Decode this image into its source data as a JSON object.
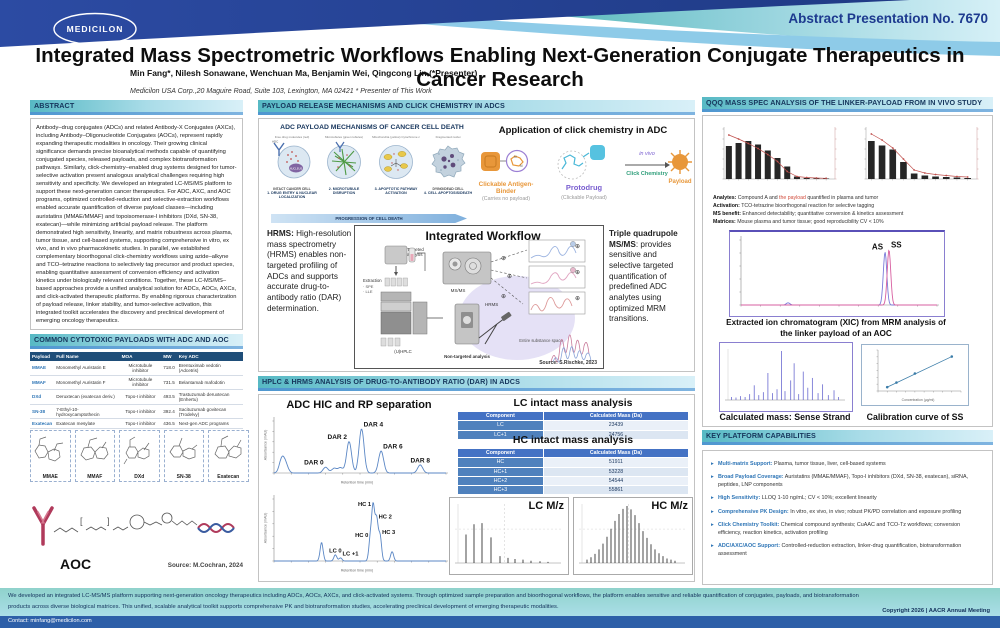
{
  "header": {
    "logo_text": "MEDICILON",
    "abstract_no": "Abstract Presentation No. 7670",
    "title": "Integrated Mass Spectrometric Workflows Enabling Next-Generation Conjugate Therapeutics in Cancer Research",
    "authors": "Min Fang*, Nilesh Sonawane, Wenchuan Ma, Benjamin Wei, Qingcong Lin (*Presenter)",
    "affiliation": "Medicilon USA Corp.,20 Maguire Road, Suite 103, Lexington, MA 02421 * Presenter of This Work"
  },
  "abstract": {
    "heading": "ABSTRACT",
    "body": "Antibody–drug conjugates (ADCs) and related Antibody-X Conjugates (AXCs), including Antibody–Oligonucleotide Conjugates (AOCs), represent rapidly expanding therapeutic modalities in oncology. Their growing clinical significance demands precise bioanalytical methods capable of quantifying conjugated species, released payloads, and complex biotransformation pathways. Similarly, click-chemistry–enabled drug systems designed for tumor-selective activation present analogous analytical challenges requiring high sensitivity and specificity. We developed an integrated LC-MS/MS platform to support these next-generation cancer therapeutics. For ADC, AXC, and AOC programs, optimized controlled-reduction and selective-extraction workflows enabled accurate quantification of diverse payload classes—including auristatins (MMAE/MMAF) and topoisomerase-I inhibitors (DXd, SN-38, exatecan)—while minimizing artificial payload release. The platform demonstrated high sensitivity, linearity, and matrix robustness across plasma, tumor tissue, and cell-based systems, supporting comprehensive in vitro, ex vivo, and in vivo pharmacokinetic studies. In parallel, we established complementary bioorthogonal click-chemistry workflows using azide–alkyne and TCO–tetrazine reactions to selectively tag precursor and product species, enabling quantitative assessment of conversion efficiency and activation kinetics under biologically relevant conditions. Together, these LC-MS/MS–based approaches provide a unified analytical solution for ADCs, AOCs, AXCs, and click-activated therapeutic platforms. By enabling rigorous characterization of payload release, linker stability, and tumor-selective activation, this integrated toolkit accelerates the discovery and preclinical development of emerging oncology therapeutics."
  },
  "payload_table": {
    "heading": "COMMON CYTOTOXIC PAYLOADS WITH ADC AND AOC",
    "columns": [
      "Payload",
      "Full Name",
      "MOA",
      "MW",
      "Key ADC"
    ],
    "rows": [
      [
        "MMAE",
        "Monomethyl Auristatin E",
        "Microtubule inhibitor",
        "718.0",
        "Brentuximab vedotin (Adcetris)"
      ],
      [
        "MMAF",
        "Monomethyl Auristatin F",
        "Microtubule inhibitor",
        "731.5",
        "Belantamab mafodotin"
      ],
      [
        "DXd",
        "Deruxtecan (exatecan deriv.)",
        "Topo-I inhibitor",
        "493.5",
        "Trastuzumab deruxtecan (Enhertu)"
      ],
      [
        "SN-38",
        "7-Ethyl-10-hydroxycamptothecin",
        "Topo-I inhibitor",
        "392.4",
        "Sacituzumab govitecan (Trodelvy)"
      ],
      [
        "Exatecan",
        "Exatecan mesylate",
        "Topo-I inhibitor",
        "436.5",
        "Next-gen ADC programs"
      ]
    ],
    "structures": [
      "MMAE",
      "MMAF",
      "DXd",
      "SN-38",
      "Exatecan"
    ],
    "aoc_label": "AOC",
    "aoc_source": "Source: M.Cochran, 2024"
  },
  "payload_release": {
    "heading": "PAYLOAD RELEASE MECHANISMS AND CLICK CHEMISTRY IN ADCS",
    "mech_title": "ADC PAYLOAD MECHANISMS OF CANCER CELL DEATH",
    "steps": [
      {
        "ann": "Free drug molecules (red)",
        "top": "INTACT CANCER CELL",
        "label": "1. DRUG ENTRY & NUCLEAR LOCALIZATION"
      },
      {
        "ann": "Microtubules (green tubules)",
        "top": "",
        "label": "2. MICROTUBULE DISRUPTION"
      },
      {
        "ann": "Mitochondria (yellow)  Cytochrome c",
        "top": "",
        "label": "3. APOPTOTIC PATHWAY ACTIVATION"
      },
      {
        "ann": "Fragmented nuclei",
        "top": "DYING/DEAD CELL",
        "label": "4. CELL APOPTOSIS/DEATH"
      }
    ],
    "progress_arrow": "PROGRESSION OF CELL DEATH",
    "click_title": "Application of click chemistry in ADC",
    "antigen_binder_label": "Clickable Antigen-Binder",
    "antigen_binder_sub": "(Carries no payload)",
    "protodrug_label": "Protodrug",
    "protodrug_sub": "(Clickable Payload)",
    "invivo_label": "in vivo",
    "click_chem_label": "Click Chemistry",
    "payload_label": "Payload",
    "hrms_note": {
      "lead": "HRMS:",
      "text": " High-resolution mass spectrometry (HRMS) enables non-targeted profiling of ADCs and supports accurate drug-to-antibody ratio (DAR) determination."
    },
    "qqq_note": {
      "lead": "Triple quadrupole MS/MS",
      "text": ": provides sensitive and selective targeted quantification of predefined ADC analytes using optimized MRM transitions."
    },
    "workflow": {
      "title": "Integrated Workflow",
      "targeted": "Targeted analysis",
      "msms": "MS/MS",
      "hrms": "HRMS",
      "uhplc": "(U)HPLC",
      "nontargeted": "Non-targeted analysis",
      "extraction": "Extraction",
      "extraction_items": "· SPE  · LLE",
      "space": "Entire substance space",
      "source": "Source: S.Rischke, 2023"
    }
  },
  "dar_section": {
    "heading": "HPLC & HRMS ANALYSIS OF DRUG-TO-ANTIBODY RATIO (DAR) IN ADCS",
    "hic_title": "ADC HIC and RP separation",
    "lc_table_title": "LC intact mass analysis",
    "hc_table_title": "HC intact mass analysis",
    "columns": [
      "Component",
      "Calculated Mass (Da)"
    ],
    "lc_rows": [
      [
        "LC",
        "23439"
      ],
      [
        "LC+1",
        "24756"
      ]
    ],
    "hc_rows": [
      [
        "HC",
        "51911"
      ],
      [
        "HC+1",
        "53228"
      ],
      [
        "HC+2",
        "54544"
      ],
      [
        "HC+3",
        "55861"
      ]
    ],
    "lc_mz_label": "LC M/z",
    "hc_mz_label": "HC M/z"
  },
  "qqq_section": {
    "heading": "QQQ MASS SPEC ANALYSIS OF THE LINKER-PAYLOAD FROM IN VIVO STUDY",
    "analysis_lines": [
      {
        "label": "Analytes:",
        "parts": [
          {
            "t": "Compound A and "
          },
          {
            "t": "the payload",
            "red": true
          },
          {
            "t": " quantified in plasma and tumor"
          }
        ]
      },
      {
        "label": "Activation:",
        "text": "TCO-tetrazine bioorthogonal reaction for selective tagging"
      },
      {
        "label": "MS benefit:",
        "text": "Enhanced detectability; quantitative conversion & kinetics assessment"
      },
      {
        "label": "Matrices:",
        "text": "Mouse plasma and tumor tissue; good reproducibility CV < 10%"
      }
    ],
    "xic_caption": "Extracted ion chromatogram (XIC) from MRM analysis of the linker payload of an AOC",
    "ss_caption": "Calculated mass: Sense Strand",
    "cal_caption": "Calibration curve of SS"
  },
  "capabilities": {
    "heading": "KEY PLATFORM CAPABILITIES",
    "bullets": [
      {
        "label": "Multi-matrix Support:",
        "text": " Plasma, tumor tissue, liver, cell-based systems"
      },
      {
        "label": "Broad Payload Coverage:",
        "text": " Auristatins (MMAE/MMAF), Topo-I inhibitors (DXd, SN-38, exatecan), siRNA, peptides, LNP components"
      },
      {
        "label": "High Sensitivity:",
        "text": " LLOQ 1-10 ng/mL; CV < 10%; excellent linearity"
      },
      {
        "label": "Comprehensive PK Design:",
        "text": " In vitro, ex vivo, in vivo; robust PK/PD correlation and exposure profiling"
      },
      {
        "label": "Click Chemistry Toolkit:",
        "text": " Chemical compound synthesis; CuAAC and TCO-Tz workflows; conversion efficiency, reaction kinetics, activation profiling"
      },
      {
        "label": "ADC/AXC/AOC Support:",
        "text": " Controlled-reduction extraction, linker-drug quantification, biotransformation assessment"
      }
    ]
  },
  "footer": {
    "summary": "We developed an integrated LC-MS/MS platform supporting next-generation oncology therapeutics including ADCs, AOCs, AXCs, and click-activated systems. Through optimized sample preparation and bioorthogonal workflows, the platform enables sensitive and reliable quantification of conjugates, payloads, and biotransformation products across diverse biological matrices. This unified, scalable analytical toolkit supports comprehensive PK and biotransformation studies, accelerating preclinical development of emerging therapeutic modalities.",
    "copyright": "Copyright 2026  |  AACR Annual Meeting",
    "contact": "Contact: minfang@medicilon.com"
  },
  "colors": {
    "brand_blue": "#2b4aa0",
    "teal": "#2fa7a2",
    "navy_text": "#17365d",
    "table_header": "#1f4e79",
    "link_blue": "#2e75b6",
    "chromatogram_blue": "#5b87c5",
    "bar_black": "#262626",
    "line_red": "#c0504d",
    "footer_teal": "#8fd2cb",
    "contact_bar": "#2d5fa8"
  },
  "chart_data": [
    {
      "id": "hic",
      "type": "chromatogram",
      "title": "ADC HIC and RP separation",
      "xlabel": "Retention time (min)",
      "ylabel": "Absorbance (mAU)",
      "xlim": [
        2,
        24
      ],
      "peak_width": 0.32,
      "label_size": 6.5,
      "series": [
        {
          "color": "#5b87c5",
          "peaks": [
            {
              "x": 3.0,
              "h": 12
            },
            {
              "x": 3.5,
              "h": 7
            },
            {
              "x": 8.6,
              "h": 5,
              "label": "DAR 0",
              "align": "end"
            },
            {
              "x": 9.7,
              "h": 4
            },
            {
              "x": 10.5,
              "h": 4.5
            },
            {
              "x": 11.6,
              "h": 27,
              "label": "DAR 2",
              "align": "end"
            },
            {
              "x": 13.2,
              "h": 38,
              "label": "DAR 4",
              "align": "start"
            },
            {
              "x": 15.7,
              "h": 19,
              "label": "DAR 6",
              "align": "start"
            },
            {
              "x": 20.7,
              "h": 7,
              "label": "DAR 8",
              "align": "middle"
            }
          ]
        }
      ]
    },
    {
      "id": "rp",
      "type": "chromatogram",
      "xlabel": "Retention time (min)",
      "ylabel": "Absorbance (mAU)",
      "xlim": [
        0,
        30
      ],
      "peak_width": 0.26,
      "label_size": 5.8,
      "series": [
        {
          "color": "#5b87c5",
          "peaks": [
            {
              "x": 8.3,
              "h": 6
            },
            {
              "x": 10.7,
              "h": 2,
              "label": "LC 0",
              "align": "middle"
            },
            {
              "x": 11.6,
              "h": 1,
              "label": "LC +1",
              "align": "start"
            },
            {
              "x": 16.8,
              "h": 7,
              "label": "HC 0",
              "align": "end"
            },
            {
              "x": 17.3,
              "h": 17,
              "label": "HC 1",
              "align": "end"
            },
            {
              "x": 17.9,
              "h": 13,
              "label": "HC 2",
              "align": "start"
            },
            {
              "x": 18.5,
              "h": 8,
              "label": "HC 3",
              "align": "start"
            },
            {
              "x": 20.6,
              "h": 3
            }
          ]
        }
      ]
    },
    {
      "id": "lcmz",
      "type": "sticks",
      "grid": true,
      "color": "#1a1a1a",
      "sticks": [
        [
          0.08,
          50
        ],
        [
          0.16,
          68
        ],
        [
          0.24,
          70
        ],
        [
          0.33,
          45
        ],
        [
          0.42,
          12
        ],
        [
          0.5,
          9
        ],
        [
          0.57,
          7
        ],
        [
          0.65,
          6
        ],
        [
          0.73,
          4
        ],
        [
          0.82,
          3
        ],
        [
          0.9,
          2
        ]
      ]
    },
    {
      "id": "hcmz",
      "type": "sticks",
      "grid": true,
      "color": "#1a1a1a",
      "sticks": [
        [
          0.05,
          6
        ],
        [
          0.09,
          10
        ],
        [
          0.13,
          16
        ],
        [
          0.17,
          24
        ],
        [
          0.21,
          34
        ],
        [
          0.25,
          46
        ],
        [
          0.29,
          60
        ],
        [
          0.33,
          74
        ],
        [
          0.37,
          86
        ],
        [
          0.41,
          95
        ],
        [
          0.45,
          100
        ],
        [
          0.49,
          94
        ],
        [
          0.53,
          84
        ],
        [
          0.57,
          70
        ],
        [
          0.61,
          56
        ],
        [
          0.65,
          44
        ],
        [
          0.69,
          33
        ],
        [
          0.73,
          24
        ],
        [
          0.77,
          17
        ],
        [
          0.81,
          12
        ],
        [
          0.85,
          8
        ],
        [
          0.89,
          6
        ],
        [
          0.93,
          4
        ]
      ]
    },
    {
      "id": "qqq1",
      "type": "barline",
      "bar_color": "#262626",
      "line_color": "#c0504d",
      "bars": [
        66,
        72,
        76,
        69,
        57,
        42,
        25,
        5,
        2,
        1.5,
        1
      ],
      "line": [
        88,
        80,
        71,
        61,
        49,
        35,
        15,
        5,
        3,
        2,
        1.5
      ]
    },
    {
      "id": "qqq2",
      "type": "barline",
      "bar_color": "#262626",
      "line_color": "#c0504d",
      "bars": [
        76,
        67,
        59,
        34,
        11,
        7,
        5,
        4,
        3,
        2
      ],
      "line": [
        90,
        78,
        62,
        40,
        18,
        12,
        9,
        7,
        5,
        4
      ]
    },
    {
      "id": "xic",
      "type": "chromatogram",
      "xlim": [
        0,
        10
      ],
      "peak_width": 0.09,
      "label_size": 8,
      "series": [
        {
          "color": "#7b7bd9",
          "peaks": [
            {
              "x": 2.4,
              "h": 4
            },
            {
              "x": 7.35,
              "h": 96,
              "label": "AS",
              "align": "end"
            }
          ]
        },
        {
          "color": "#d75fa0",
          "peaks": [
            {
              "x": 7.55,
              "h": 100,
              "label": "SS",
              "align": "start"
            }
          ]
        }
      ]
    },
    {
      "id": "ssms",
      "type": "sticks",
      "color": "#6a6ad0",
      "sticks": [
        [
          0.03,
          6
        ],
        [
          0.07,
          5
        ],
        [
          0.11,
          8
        ],
        [
          0.15,
          6
        ],
        [
          0.19,
          12
        ],
        [
          0.23,
          30
        ],
        [
          0.27,
          10
        ],
        [
          0.31,
          16
        ],
        [
          0.35,
          55
        ],
        [
          0.39,
          14
        ],
        [
          0.43,
          22
        ],
        [
          0.47,
          100
        ],
        [
          0.5,
          18
        ],
        [
          0.55,
          40
        ],
        [
          0.58,
          75
        ],
        [
          0.62,
          12
        ],
        [
          0.66,
          58
        ],
        [
          0.7,
          25
        ],
        [
          0.74,
          45
        ],
        [
          0.79,
          14
        ],
        [
          0.83,
          32
        ],
        [
          0.88,
          10
        ],
        [
          0.93,
          20
        ],
        [
          0.97,
          6
        ]
      ]
    },
    {
      "id": "cal",
      "type": "scatter",
      "color": "#3a7ca8",
      "xlabel": "Concentration (µg/ml)",
      "xlim": [
        0,
        4.5
      ],
      "ylim": [
        0,
        300000
      ],
      "points": [
        [
          0.5,
          28000
        ],
        [
          1,
          62000
        ],
        [
          2,
          128000
        ],
        [
          4,
          252000
        ]
      ]
    }
  ]
}
